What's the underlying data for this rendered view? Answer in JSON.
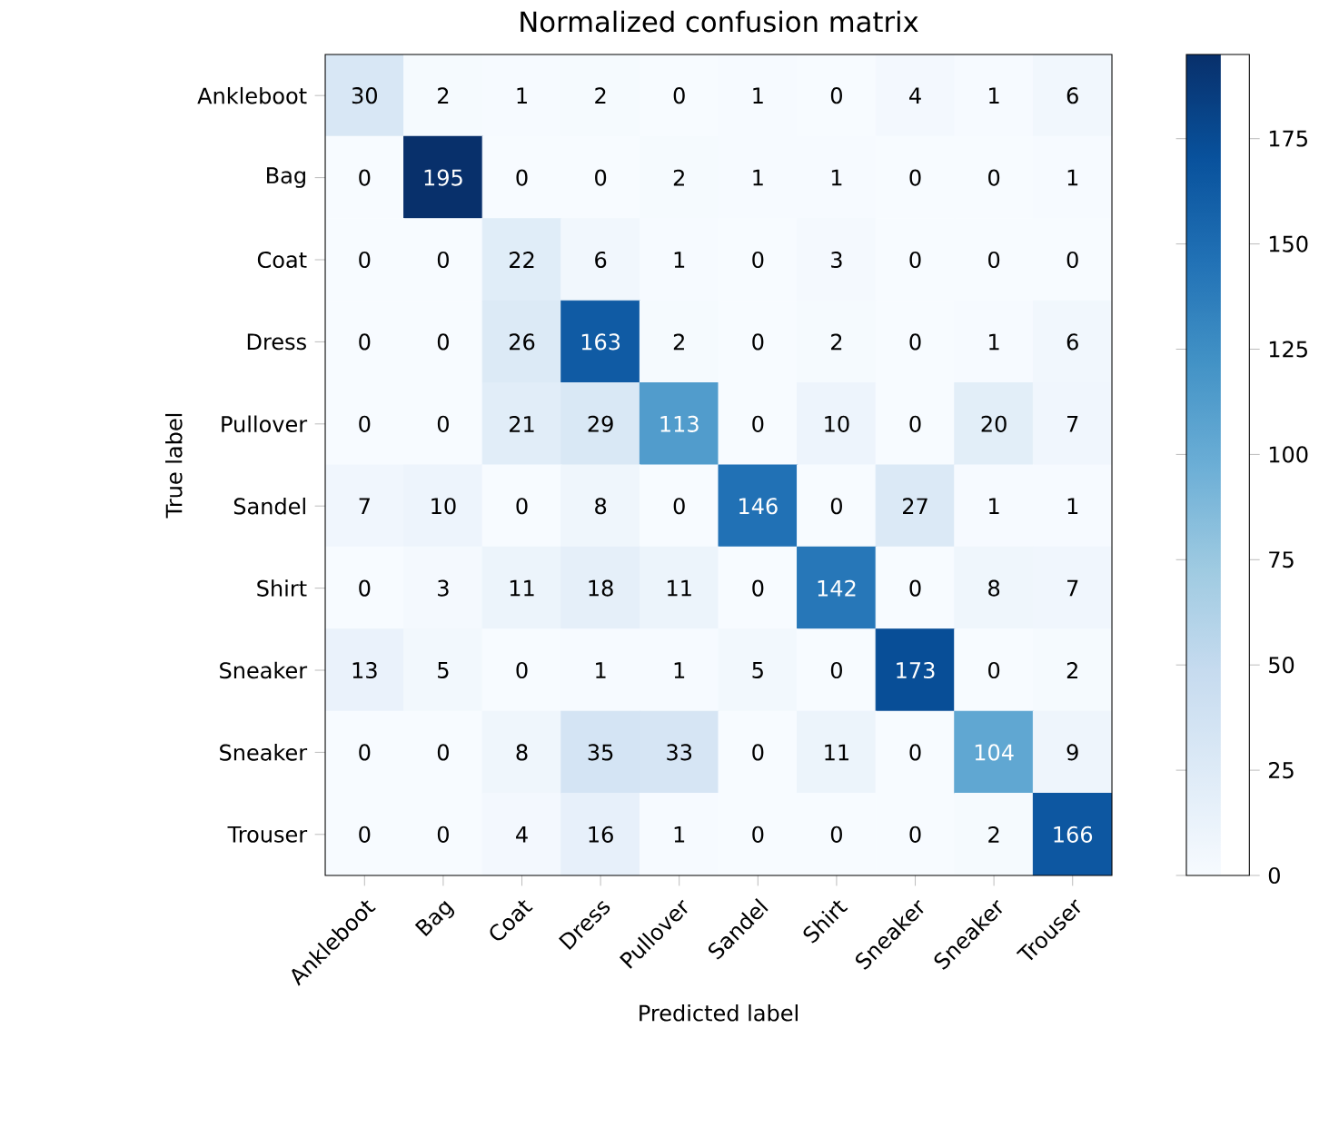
{
  "chart_data": {
    "type": "heatmap",
    "title": "Normalized confusion matrix",
    "xlabel": "Predicted label",
    "ylabel": "True label",
    "categories": [
      "Ankleboot",
      "Bag",
      "Coat",
      "Dress",
      "Pullover",
      "Sandel",
      "Shirt",
      "Sneaker",
      "Sneaker",
      "Trouser"
    ],
    "y_categories": [
      "Ankleboot",
      "Bag",
      "Coat",
      "Dress",
      "Pullover",
      "Sandel",
      "Shirt",
      "Sneaker",
      "Sneaker",
      "Trouser"
    ],
    "cells": [
      [
        30,
        2,
        1,
        2,
        0,
        1,
        0,
        4,
        1,
        6
      ],
      [
        0,
        195,
        0,
        0,
        2,
        1,
        1,
        0,
        0,
        1
      ],
      [
        0,
        0,
        22,
        6,
        1,
        0,
        3,
        0,
        0,
        0
      ],
      [
        0,
        0,
        26,
        163,
        2,
        0,
        2,
        0,
        1,
        6
      ],
      [
        0,
        0,
        21,
        29,
        113,
        0,
        10,
        0,
        20,
        7
      ],
      [
        7,
        10,
        0,
        8,
        0,
        146,
        0,
        27,
        1,
        1
      ],
      [
        0,
        3,
        11,
        18,
        11,
        0,
        142,
        0,
        8,
        7
      ],
      [
        13,
        5,
        0,
        1,
        1,
        5,
        0,
        173,
        0,
        2
      ],
      [
        0,
        0,
        8,
        35,
        33,
        0,
        11,
        0,
        104,
        9
      ],
      [
        0,
        0,
        4,
        16,
        1,
        0,
        0,
        0,
        2,
        166
      ]
    ],
    "clim": [
      0,
      195
    ],
    "cticks": [
      0,
      25,
      50,
      75,
      100,
      125,
      150,
      175
    ],
    "data_labels": true
  }
}
